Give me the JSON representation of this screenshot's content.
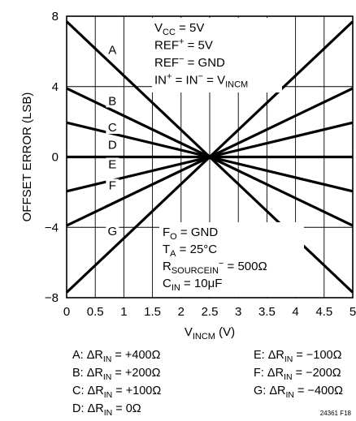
{
  "chart_data": {
    "type": "line",
    "xlabel": "V",
    "xlabel_sub": "INCM",
    "xlabel_unit": " (V)",
    "ylabel": "OFFSET ERROR (LSB)",
    "xlim": [
      0,
      5
    ],
    "ylim": [
      -8,
      8
    ],
    "x_ticks": [
      0,
      0.5,
      1,
      1.5,
      2,
      2.5,
      3,
      3.5,
      4,
      4.5,
      5
    ],
    "x_tick_labels": [
      "0",
      "0.5",
      "1",
      "1.5",
      "2",
      "2.5",
      "3",
      "3.5",
      "4",
      "4.5",
      "5"
    ],
    "y_ticks": [
      -8,
      -4,
      0,
      4,
      8
    ],
    "y_tick_labels": [
      "−8",
      "−4",
      "0",
      "4",
      "8"
    ],
    "grid": true,
    "series": [
      {
        "name": "A",
        "x": [
          0,
          2.5,
          5
        ],
        "y": [
          7.7,
          0,
          -7.7
        ],
        "label_at": [
          0.8,
          5.9
        ]
      },
      {
        "name": "B",
        "x": [
          0,
          2.5,
          5
        ],
        "y": [
          3.9,
          0,
          -3.9
        ],
        "label_at": [
          0.8,
          3.0
        ]
      },
      {
        "name": "C",
        "x": [
          0,
          2.5,
          5
        ],
        "y": [
          1.95,
          0,
          -1.95
        ],
        "label_at": [
          0.8,
          1.5
        ]
      },
      {
        "name": "D",
        "x": [
          0,
          5
        ],
        "y": [
          0,
          0
        ],
        "label_at": [
          0.8,
          0.5
        ]
      },
      {
        "name": "E",
        "x": [
          0,
          2.5,
          5
        ],
        "y": [
          -1.95,
          0,
          1.95
        ],
        "label_at": [
          0.8,
          -0.6
        ]
      },
      {
        "name": "F",
        "x": [
          0,
          2.5,
          5
        ],
        "y": [
          -3.9,
          0,
          3.9
        ],
        "label_at": [
          0.8,
          -1.8
        ]
      },
      {
        "name": "G",
        "x": [
          0,
          2.5,
          5
        ],
        "y": [
          -7.7,
          0,
          7.7
        ],
        "label_at": [
          0.8,
          -4.4
        ]
      }
    ],
    "annotations_top": [
      {
        "main": "V",
        "sub": "CC",
        "rest": " = 5V"
      },
      {
        "main": "REF",
        "sup": "+",
        "rest": " = 5V"
      },
      {
        "main": "REF",
        "sup": "−",
        "rest": " = GND"
      },
      {
        "main": "IN",
        "sup": "+",
        "rest": " = IN",
        "sup2": "−",
        "rest2": " = V",
        "sub2": "INCM"
      }
    ],
    "annotations_bottom": [
      {
        "main": "F",
        "sub": "O",
        "rest": " = GND"
      },
      {
        "main": "T",
        "sub": "A",
        "rest": " = 25°C"
      },
      {
        "main": "R",
        "sub": "SOURCEIN",
        "sup_after_sub": "−",
        "rest": " = 500Ω"
      },
      {
        "main": "C",
        "sub": "IN",
        "rest": " = 10μF"
      }
    ],
    "legend": [
      {
        "key": "A: ΔR",
        "sub": "IN",
        "val": " = +400Ω"
      },
      {
        "key": "B: ΔR",
        "sub": "IN",
        "val": " = +200Ω"
      },
      {
        "key": "C: ΔR",
        "sub": "IN",
        "val": " = +100Ω"
      },
      {
        "key": "D: ΔR",
        "sub": "IN",
        "val": " = 0Ω"
      },
      {
        "key": "E: ΔR",
        "sub": "IN",
        "val": " = −100Ω"
      },
      {
        "key": "F: ΔR",
        "sub": "IN",
        "val": " = −200Ω"
      },
      {
        "key": "G: ΔR",
        "sub": "IN",
        "val": " = −400Ω"
      }
    ],
    "figure_id": "24361 F18",
    "line_color": "#000000",
    "grid_color": "#000000"
  }
}
